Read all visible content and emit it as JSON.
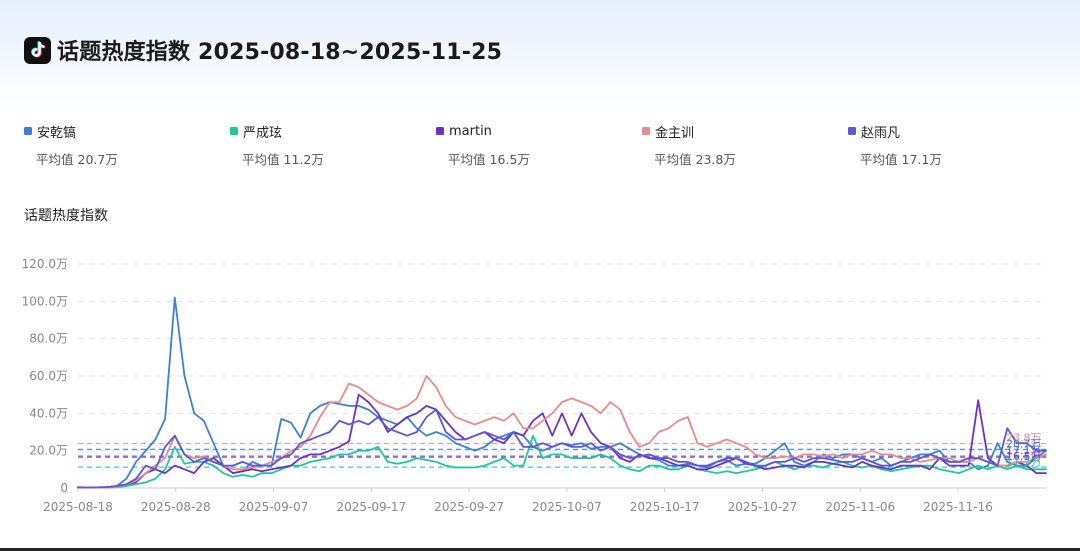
{
  "header": {
    "title": "话题热度指数 2025-08-18~2025-11-25",
    "logo_icon": "tiktok-logo-icon"
  },
  "legend": [
    {
      "name": "安乾镐",
      "color": "#3d7fd6",
      "avg_label": "平均值",
      "avg_value": "20.7万"
    },
    {
      "name": "严成玹",
      "color": "#21c79a",
      "avg_label": "平均值",
      "avg_value": "11.2万"
    },
    {
      "name": "martin",
      "color": "#7030c0",
      "avg_label": "平均值",
      "avg_value": "16.5万"
    },
    {
      "name": "金主训",
      "color": "#e88b8b",
      "avg_label": "平均值",
      "avg_value": "23.8万"
    },
    {
      "name": "赵雨凡",
      "color": "#5b57d6",
      "avg_label": "平均值",
      "avg_value": "17.1万"
    }
  ],
  "chart_title": "话题热度指数",
  "chart_data": {
    "type": "line",
    "title": "话题热度指数",
    "xlabel": "",
    "ylabel": "",
    "ylim": [
      0,
      120
    ],
    "y_unit": "万",
    "y_ticks": [
      0,
      20,
      40,
      60,
      80,
      100,
      120
    ],
    "y_tick_labels": [
      "0",
      "20.0万",
      "40.0万",
      "60.0万",
      "80.0万",
      "100.0万",
      "120.0万"
    ],
    "x_tick_labels": [
      "2025-08-18",
      "2025-08-28",
      "2025-09-07",
      "2025-09-17",
      "2025-09-27",
      "2025-10-07",
      "2025-10-17",
      "2025-10-27",
      "2025-11-06",
      "2025-11-16"
    ],
    "x_start": "2025-08-18",
    "x_end": "2025-11-25",
    "grid": true,
    "legend_position": "top",
    "series": [
      {
        "name": "安乾镐",
        "color": "#3d7fd6",
        "average": 20.7,
        "values": [
          0.5,
          0.3,
          0.3,
          0.5,
          1,
          5,
          14,
          20,
          26,
          37,
          102,
          60,
          40,
          36,
          24,
          12,
          8,
          9,
          14,
          12,
          12,
          37,
          35,
          27,
          40,
          44,
          46,
          45,
          44,
          44,
          42,
          38,
          36,
          34,
          38,
          32,
          28,
          30,
          28,
          24,
          22,
          20,
          22,
          26,
          28,
          30,
          28,
          22,
          20,
          22,
          24,
          23,
          24,
          21,
          22,
          22,
          24,
          21,
          18,
          16,
          15,
          12,
          12,
          13,
          12,
          11,
          14,
          15,
          12,
          13,
          13,
          16,
          20,
          24,
          14,
          12,
          14,
          18,
          16,
          18,
          18,
          16,
          14,
          16,
          12,
          14,
          16,
          18,
          18,
          20,
          14,
          14,
          14,
          10,
          12,
          24,
          14,
          12,
          12,
          16,
          20
        ]
      },
      {
        "name": "严成玹",
        "color": "#21c79a",
        "average": 11.2,
        "values": [
          0.2,
          0.2,
          0.2,
          0.2,
          0.5,
          1,
          2,
          3,
          5,
          10,
          22,
          13,
          14,
          14,
          12,
          8,
          6,
          7,
          6,
          8,
          8,
          10,
          12,
          12,
          14,
          15,
          16,
          18,
          18,
          20,
          20,
          22,
          14,
          13,
          14,
          16,
          15,
          14,
          12,
          11,
          11,
          11,
          12,
          14,
          16,
          12,
          12,
          28,
          16,
          18,
          18,
          16,
          16,
          16,
          18,
          16,
          12,
          10,
          9,
          12,
          12,
          10,
          10,
          12,
          10,
          9,
          8,
          9,
          8,
          9,
          10,
          12,
          14,
          12,
          10,
          12,
          12,
          11,
          13,
          14,
          12,
          11,
          12,
          10,
          9,
          10,
          11,
          12,
          12,
          10,
          9,
          8,
          10,
          12,
          10,
          12,
          10,
          12,
          10,
          10,
          10
        ]
      },
      {
        "name": "martin",
        "color": "#7030c0",
        "average": 16.5,
        "values": [
          0.3,
          0.2,
          0.3,
          0.5,
          1,
          2,
          3,
          8,
          10,
          8,
          12,
          10,
          8,
          14,
          16,
          12,
          8,
          9,
          10,
          9,
          10,
          11,
          12,
          16,
          18,
          18,
          20,
          22,
          25,
          50,
          46,
          40,
          30,
          34,
          38,
          40,
          44,
          42,
          36,
          30,
          26,
          28,
          30,
          26,
          24,
          30,
          28,
          36,
          40,
          28,
          40,
          28,
          40,
          30,
          24,
          22,
          16,
          14,
          18,
          16,
          16,
          14,
          12,
          12,
          10,
          10,
          12,
          14,
          16,
          13,
          12,
          10,
          11,
          12,
          12,
          11,
          14,
          14,
          13,
          12,
          11,
          14,
          12,
          11,
          10,
          12,
          12,
          12,
          10,
          16,
          12,
          12,
          12,
          47,
          16,
          12,
          12,
          14,
          12,
          8,
          8
        ]
      },
      {
        "name": "金主训",
        "color": "#e88b8b",
        "average": 23.8,
        "values": [
          0.3,
          0.2,
          0.2,
          0.3,
          0.5,
          2,
          4,
          8,
          12,
          16,
          28,
          18,
          16,
          17,
          14,
          12,
          10,
          10,
          11,
          12,
          14,
          16,
          20,
          22,
          28,
          38,
          46,
          46,
          56,
          54,
          50,
          46,
          44,
          42,
          44,
          48,
          60,
          54,
          44,
          38,
          36,
          34,
          36,
          38,
          36,
          40,
          32,
          32,
          36,
          40,
          46,
          48,
          46,
          44,
          40,
          46,
          42,
          30,
          22,
          24,
          30,
          32,
          36,
          38,
          24,
          22,
          24,
          26,
          24,
          22,
          18,
          16,
          16,
          17,
          16,
          18,
          18,
          17,
          18,
          16,
          18,
          18,
          20,
          18,
          18,
          16,
          16,
          14,
          15,
          16,
          16,
          14,
          14,
          16,
          14,
          12,
          12,
          14,
          14,
          16,
          18
        ]
      },
      {
        "name": "赵雨凡",
        "color": "#5b57d6",
        "average": 17.1,
        "values": [
          0.3,
          0.2,
          0.3,
          0.5,
          1,
          2,
          5,
          12,
          10,
          22,
          28,
          18,
          14,
          16,
          14,
          12,
          12,
          14,
          12,
          12,
          12,
          16,
          18,
          24,
          26,
          28,
          30,
          36,
          34,
          36,
          34,
          38,
          32,
          30,
          28,
          30,
          38,
          42,
          30,
          26,
          26,
          28,
          30,
          28,
          26,
          30,
          22,
          22,
          24,
          22,
          24,
          22,
          22,
          24,
          20,
          22,
          18,
          16,
          17,
          18,
          16,
          16,
          14,
          14,
          12,
          12,
          14,
          16,
          16,
          14,
          12,
          12,
          14,
          14,
          16,
          14,
          16,
          16,
          15,
          14,
          14,
          16,
          14,
          12,
          12,
          14,
          14,
          16,
          18,
          16,
          14,
          14,
          16,
          16,
          14,
          12,
          32,
          24,
          24,
          20,
          20
        ]
      }
    ]
  }
}
